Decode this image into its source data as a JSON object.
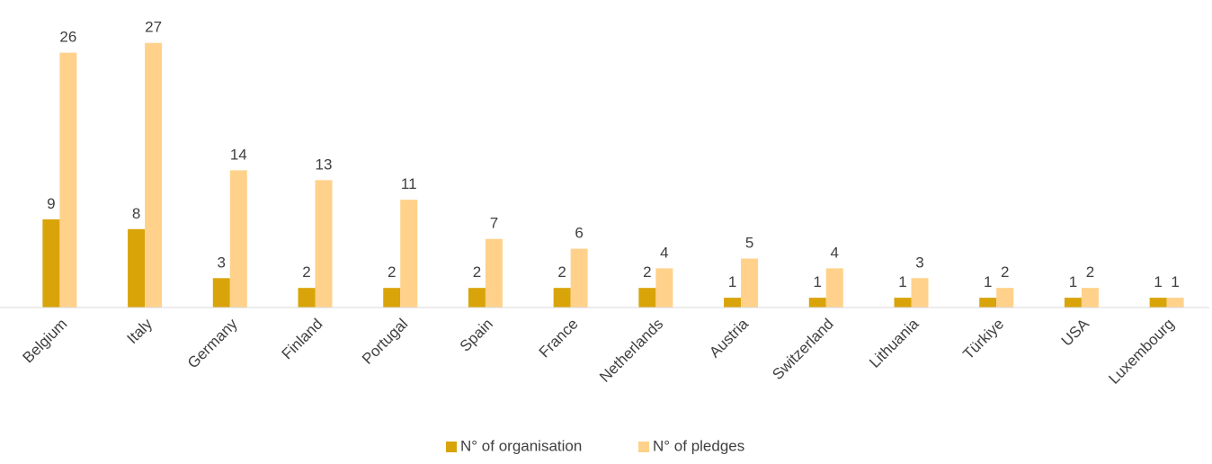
{
  "chart_data": {
    "type": "bar",
    "categories": [
      "Belgium",
      "Italy",
      "Germany",
      "Finland",
      "Portugal",
      "Spain",
      "France",
      "Netherlands",
      "Austria",
      "Switzerland",
      "Lithuania",
      "Türkiye",
      "USA",
      "Luxembourg"
    ],
    "series": [
      {
        "name": "N° of organisation",
        "color": "#d9a40a",
        "values": [
          9,
          8,
          3,
          2,
          2,
          2,
          2,
          2,
          1,
          1,
          1,
          1,
          1,
          1
        ]
      },
      {
        "name": "N° of pledges",
        "color": "#ffd18a",
        "values": [
          26,
          27,
          14,
          13,
          11,
          7,
          6,
          4,
          5,
          4,
          3,
          2,
          2,
          1
        ]
      }
    ],
    "ylim": [
      0,
      30
    ]
  }
}
